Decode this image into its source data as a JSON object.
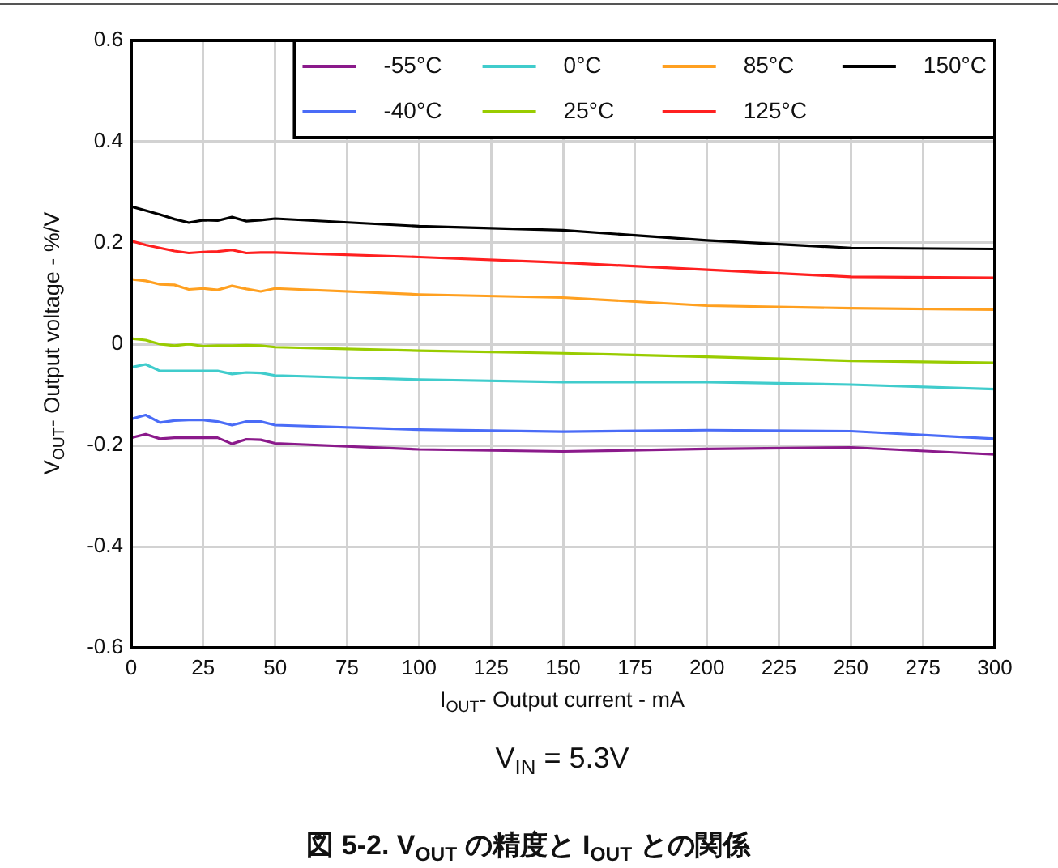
{
  "chart_data": {
    "type": "line",
    "title": "図 5-2. V$_{OUT}$ の精度と I$_{OUT}$ との関係",
    "subtitle": "V$_{IN}$ = 5.3V",
    "xlabel": "I$_{OUT}$- Output current - mA",
    "ylabel": "V$_{OUT}$- Output voltage - %/V",
    "x": [
      0,
      5,
      10,
      15,
      20,
      25,
      30,
      35,
      40,
      45,
      50,
      100,
      150,
      200,
      250,
      300
    ],
    "series": [
      {
        "name": "-55°C",
        "color": "#8b1a8b",
        "values": [
          -0.185,
          -0.178,
          -0.187,
          -0.185,
          -0.185,
          -0.185,
          -0.185,
          -0.197,
          -0.188,
          -0.189,
          -0.196,
          -0.208,
          -0.212,
          -0.207,
          -0.204,
          -0.218
        ]
      },
      {
        "name": "-40°C",
        "color": "#4a6cf7",
        "values": [
          -0.148,
          -0.14,
          -0.155,
          -0.151,
          -0.15,
          -0.15,
          -0.153,
          -0.16,
          -0.153,
          -0.153,
          -0.16,
          -0.169,
          -0.173,
          -0.17,
          -0.172,
          -0.187
        ]
      },
      {
        "name": "0°C",
        "color": "#40cccc",
        "values": [
          -0.046,
          -0.04,
          -0.053,
          -0.053,
          -0.053,
          -0.053,
          -0.053,
          -0.059,
          -0.056,
          -0.057,
          -0.062,
          -0.07,
          -0.075,
          -0.075,
          -0.08,
          -0.089
        ]
      },
      {
        "name": "25°C",
        "color": "#99cc00",
        "values": [
          0.011,
          0.008,
          0.0,
          -0.003,
          0.0,
          -0.004,
          -0.003,
          -0.003,
          -0.002,
          -0.003,
          -0.006,
          -0.013,
          -0.018,
          -0.025,
          -0.033,
          -0.037
        ]
      },
      {
        "name": "85°C",
        "color": "#ffa020",
        "values": [
          0.128,
          0.125,
          0.118,
          0.117,
          0.108,
          0.11,
          0.107,
          0.115,
          0.109,
          0.104,
          0.11,
          0.098,
          0.092,
          0.076,
          0.071,
          0.068
        ]
      },
      {
        "name": "125°C",
        "color": "#ff2020",
        "values": [
          0.204,
          0.196,
          0.19,
          0.184,
          0.18,
          0.182,
          0.183,
          0.186,
          0.18,
          0.181,
          0.181,
          0.172,
          0.161,
          0.147,
          0.133,
          0.131
        ]
      },
      {
        "name": "150°C",
        "color": "#000000",
        "values": [
          0.272,
          0.264,
          0.256,
          0.247,
          0.24,
          0.245,
          0.244,
          0.251,
          0.243,
          0.245,
          0.248,
          0.233,
          0.225,
          0.205,
          0.19,
          0.188
        ]
      }
    ],
    "xlim": [
      0,
      300
    ],
    "xticks": [
      0,
      25,
      50,
      75,
      100,
      125,
      150,
      175,
      200,
      225,
      250,
      275,
      300
    ],
    "ylim": [
      -0.6,
      0.6
    ],
    "yticks": [
      -0.6,
      -0.4,
      -0.2,
      0,
      0.2,
      0.4,
      0.6
    ],
    "grid": true,
    "legend": "top right"
  }
}
